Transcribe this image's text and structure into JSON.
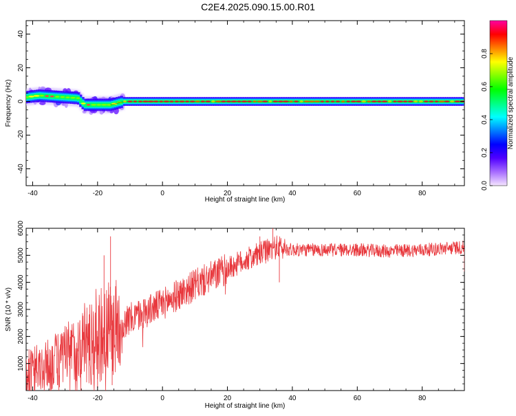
{
  "title": "C2E4.2025.090.15.00.R01",
  "chart_data": [
    {
      "type": "heatmap",
      "xlabel": "Height of straight line (km)",
      "ylabel": "Frequency (Hz)",
      "xlim": [
        -42,
        93
      ],
      "ylim": [
        -50,
        48
      ],
      "xticks": [
        -40,
        -20,
        0,
        20,
        40,
        60,
        80
      ],
      "yticks": [
        -40,
        -20,
        0,
        20,
        40
      ],
      "grid": false,
      "colorbar": {
        "label": "Normalized spectral amplitude",
        "range": [
          0.0,
          1.0
        ],
        "ticks": [
          "0.0",
          "0.2",
          "0.4",
          "0.6",
          "0.8"
        ],
        "colors": [
          "#f5e6ff",
          "#a66cff",
          "#5000ff",
          "#0000ff",
          "#0080ff",
          "#00ffff",
          "#00ff80",
          "#00ff00",
          "#80ff00",
          "#ffff00",
          "#ff8000",
          "#ff0000",
          "#ff00a0"
        ]
      },
      "ridge": [
        {
          "x": -42,
          "y": 2.5
        },
        {
          "x": -38,
          "y": 3.5
        },
        {
          "x": -34,
          "y": 3
        },
        {
          "x": -30,
          "y": 2.5
        },
        {
          "x": -26,
          "y": 2
        },
        {
          "x": -24,
          "y": -2
        },
        {
          "x": -20,
          "y": -2
        },
        {
          "x": -16,
          "y": -2
        },
        {
          "x": -12,
          "y": 0
        },
        {
          "x": 0,
          "y": 0
        },
        {
          "x": 93,
          "y": 0
        }
      ]
    },
    {
      "type": "line",
      "xlabel": "Height of straight line (km)",
      "ylabel": "SNR (10 * v/v)",
      "xlim": [
        -42,
        93
      ],
      "ylim": [
        0,
        6000
      ],
      "xticks": [
        -40,
        -20,
        0,
        20,
        40,
        60,
        80
      ],
      "yticks": [
        1000,
        2000,
        3000,
        4000,
        5000,
        6000
      ],
      "grid": false,
      "color": "#e8383d",
      "trend": [
        {
          "x": -42,
          "y": 600
        },
        {
          "x": -35,
          "y": 900
        },
        {
          "x": -30,
          "y": 1300
        },
        {
          "x": -25,
          "y": 1700
        },
        {
          "x": -20,
          "y": 2000
        },
        {
          "x": -15,
          "y": 2300
        },
        {
          "x": -10,
          "y": 2650
        },
        {
          "x": 0,
          "y": 3200
        },
        {
          "x": 5,
          "y": 3550
        },
        {
          "x": 10,
          "y": 3900
        },
        {
          "x": 15,
          "y": 4200
        },
        {
          "x": 20,
          "y": 4500
        },
        {
          "x": 25,
          "y": 4800
        },
        {
          "x": 30,
          "y": 5050
        },
        {
          "x": 35,
          "y": 5300
        },
        {
          "x": 40,
          "y": 5200
        },
        {
          "x": 50,
          "y": 5200
        },
        {
          "x": 60,
          "y": 5200
        },
        {
          "x": 70,
          "y": 5150
        },
        {
          "x": 80,
          "y": 5200
        },
        {
          "x": 93,
          "y": 5300
        }
      ],
      "spikes": [
        {
          "x": -18,
          "y": 5000
        },
        {
          "x": -16,
          "y": 5700
        },
        {
          "x": -15.5,
          "y": 200
        },
        {
          "x": -20,
          "y": 100
        },
        {
          "x": 30,
          "y": 5700
        },
        {
          "x": 34,
          "y": 6000
        },
        {
          "x": 36,
          "y": 4000
        },
        {
          "x": 93,
          "y": 4400
        }
      ]
    }
  ]
}
